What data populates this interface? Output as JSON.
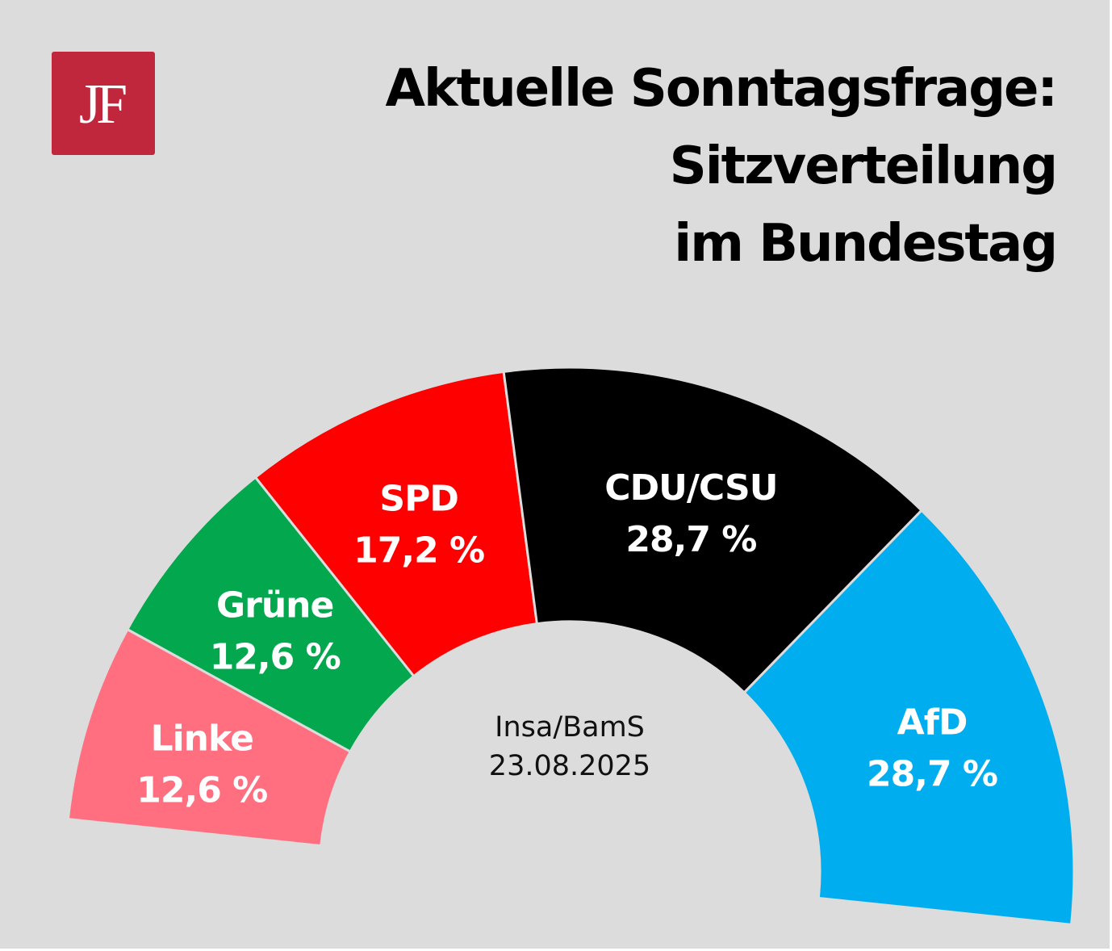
{
  "logo": {
    "text": "JF",
    "color": "#c0273d"
  },
  "title_lines": [
    "Aktuelle Sonntagsfrage:",
    "Sitzverteilung",
    "im Bundestag"
  ],
  "source": {
    "line1": "Insa/BamS",
    "line2": "23.08.2025"
  },
  "chart_data": {
    "type": "pie",
    "subtype": "semicircle-parliament",
    "slices": [
      {
        "name": "Linke",
        "value": 12.6,
        "label": "12,6 %",
        "color": "#ff6f7f"
      },
      {
        "name": "Grüne",
        "value": 12.6,
        "label": "12,6 %",
        "color": "#03a84e"
      },
      {
        "name": "SPD",
        "value": 17.2,
        "label": "17,2 %",
        "color": "#fe0000"
      },
      {
        "name": "CDU/CSU",
        "value": 28.7,
        "label": "28,7 %",
        "color": "#000000"
      },
      {
        "name": "AfD",
        "value": 28.7,
        "label": "28,7 %",
        "color": "#00aeef"
      }
    ],
    "title": "Aktuelle Sonntagsfrage: Sitzverteilung im Bundestag",
    "legend": "none"
  }
}
